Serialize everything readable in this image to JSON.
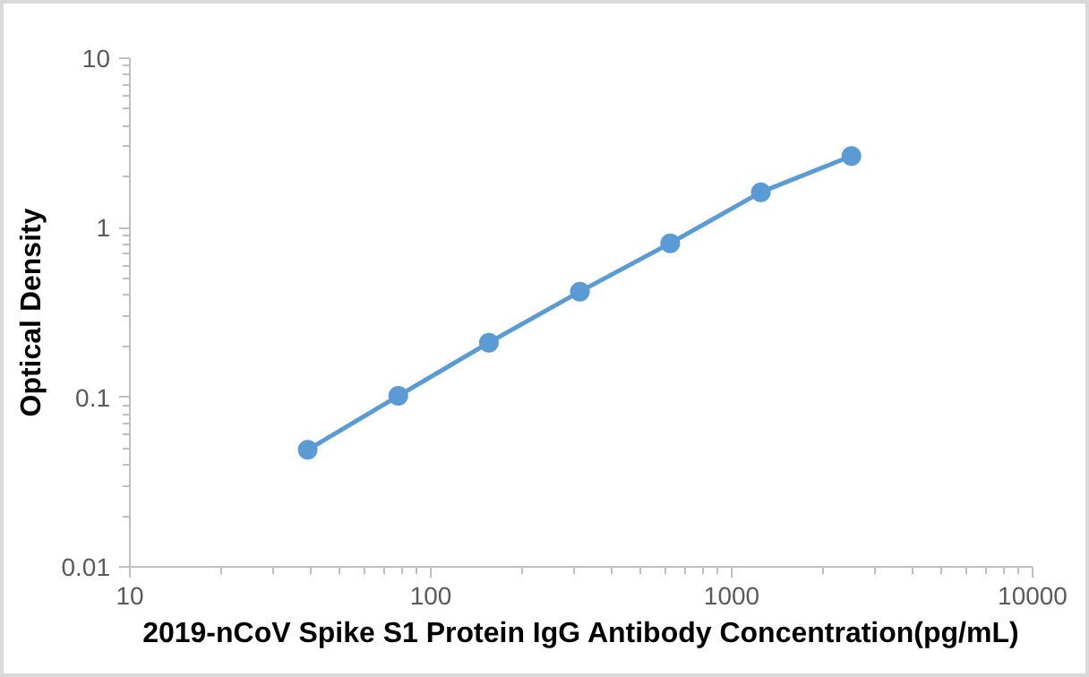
{
  "chart_data": {
    "type": "line",
    "xlabel": "2019-nCoV Spike S1 Protein IgG Antibody Concentration(pg/mL)",
    "ylabel": "Optical Density",
    "log": "xy",
    "xlim": [
      10,
      10000
    ],
    "xticks": [
      10,
      100,
      1000,
      10000
    ],
    "ylim": [
      0.01,
      10
    ],
    "yticks": [
      0.01,
      0.1,
      1,
      10
    ],
    "grid": false,
    "marker": "circle",
    "line_style": "solid",
    "x": [
      39,
      78,
      156,
      313,
      625,
      1250,
      2500
    ],
    "series": [
      {
        "color": "#5b9bd5",
        "values": [
          0.049,
          0.102,
          0.21,
          0.42,
          0.81,
          1.62,
          2.65
        ]
      }
    ]
  }
}
